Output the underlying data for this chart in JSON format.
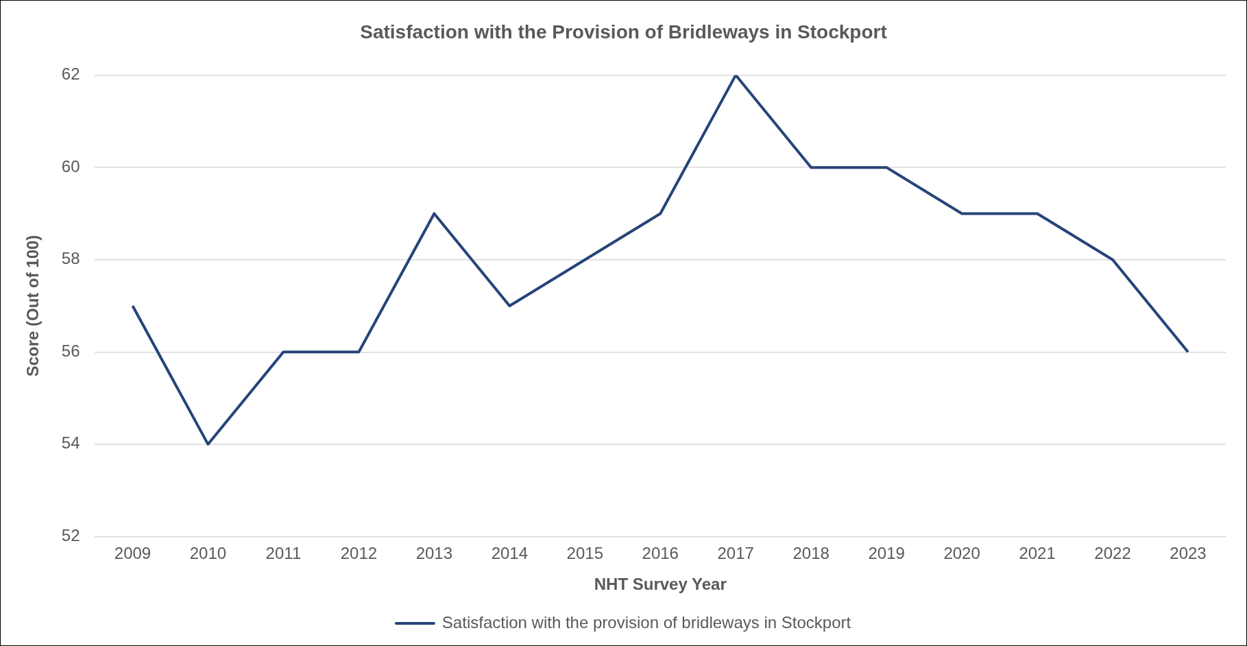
{
  "chart_data": {
    "type": "line",
    "title": "Satisfaction with the Provision of Bridleways in Stockport",
    "xlabel": "NHT Survey Year",
    "ylabel": "Score (Out of 100)",
    "categories": [
      "2009",
      "2010",
      "2011",
      "2012",
      "2013",
      "2014",
      "2015",
      "2016",
      "2017",
      "2018",
      "2019",
      "2020",
      "2021",
      "2022",
      "2023"
    ],
    "series": [
      {
        "name": "Satisfaction with the provision of bridleways in Stockport",
        "color": "#264478",
        "values": [
          57,
          54,
          56,
          56,
          59,
          57,
          58,
          59,
          62,
          60,
          60,
          59,
          59,
          58,
          56
        ]
      }
    ],
    "ylim": [
      52,
      62
    ],
    "yticks": [
      52,
      54,
      56,
      58,
      60,
      62
    ],
    "grid": "y",
    "legend": "bottom",
    "marker": "none",
    "line_style": "solid"
  }
}
